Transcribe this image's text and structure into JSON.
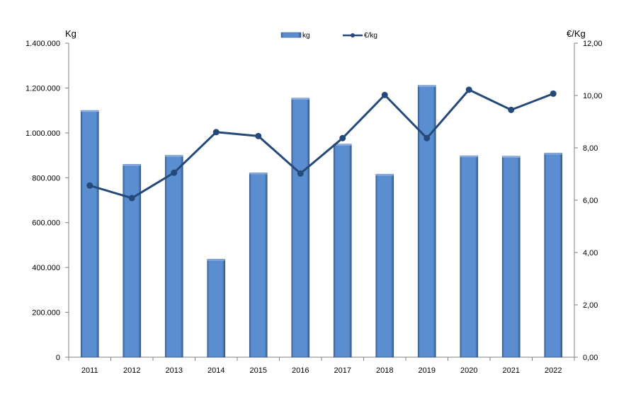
{
  "chart_data": {
    "type": "bar",
    "categories": [
      "2011",
      "2012",
      "2013",
      "2014",
      "2015",
      "2016",
      "2017",
      "2018",
      "2019",
      "2020",
      "2021",
      "2022"
    ],
    "series": [
      {
        "name": "kg",
        "type": "bar",
        "axis": "left",
        "color": "#5b8ed0",
        "values": [
          1100000,
          860000,
          900000,
          437000,
          822000,
          1155000,
          950000,
          816000,
          1212000,
          898000,
          896000,
          910000
        ]
      },
      {
        "name": "€/kg",
        "type": "line",
        "axis": "right",
        "color": "#254a7a",
        "values": [
          6.56,
          6.08,
          7.05,
          8.6,
          8.45,
          7.02,
          8.37,
          10.02,
          8.37,
          10.22,
          9.45,
          10.07
        ]
      }
    ],
    "ylabel_left": "Kg",
    "ylabel_right": "€/Kg",
    "ylim_left": [
      0,
      1400000
    ],
    "yticks_left": [
      "0",
      "200.000",
      "400.000",
      "600.000",
      "800.000",
      "1.000.000",
      "1.200.000",
      "1.400.000"
    ],
    "ylim_right": [
      0,
      12
    ],
    "yticks_right": [
      "0,00",
      "2,00",
      "4,00",
      "6,00",
      "8,00",
      "10,00",
      "12,00"
    ],
    "legend": {
      "position": "top-center",
      "items": [
        "kg",
        "€/kg"
      ]
    },
    "grid": false
  }
}
